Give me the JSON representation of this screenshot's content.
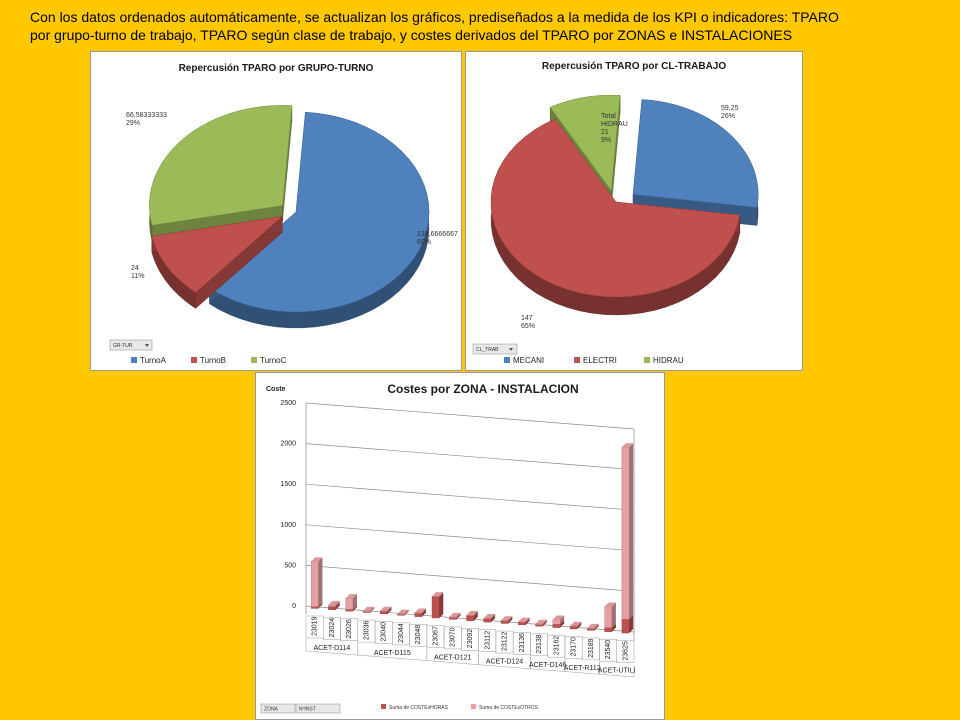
{
  "caption": {
    "line1": "Con los datos ordenados automáticamente, se actualizan los gráficos, prediseñados a la medida de los KPI o indicadores: TPARO",
    "line2": "por grupo-turno de trabajo, TPARO según clase de trabajo, y costes derivados del TPARO por ZONAS e INSTALACIONES"
  },
  "colors": {
    "background": "#FFC800",
    "blue": "#4F81BD",
    "red": "#C0504D",
    "green": "#9BBB59",
    "pink": "#E6A0A3"
  },
  "chart_data": [
    {
      "type": "pie",
      "title": "Repercusión TPARO por GRUPO-TURNO",
      "filter_button": "GR-TUR",
      "slices": [
        {
          "name": "TurnoA",
          "value": 136.6666667,
          "value_label": "136,6666667",
          "pct_label": "60%",
          "color": "#4F81BD"
        },
        {
          "name": "TurnoB",
          "value": 24,
          "value_label": "24",
          "pct_label": "11%",
          "color": "#C0504D"
        },
        {
          "name": "TurnoC",
          "value": 66.58333333,
          "value_label": "66,58333333",
          "pct_label": "29%",
          "color": "#9BBB59"
        }
      ],
      "legend": "bottom"
    },
    {
      "type": "pie",
      "title": "Repercusión TPARO por CL-TRABAJO",
      "filter_button": "CL_TRAB",
      "slices": [
        {
          "name": "MECANI",
          "value": 59.25,
          "value_label": "59,25",
          "pct_label": "26%",
          "color": "#4F81BD"
        },
        {
          "name": "ELECTRI",
          "value": 147,
          "value_label": "147",
          "pct_label": "65%",
          "color": "#C0504D"
        },
        {
          "name": "HIDRAU",
          "value": 21,
          "value_label": "21",
          "pct_label": "9%",
          "extra_label": "Total HIDRAU",
          "color": "#9BBB59"
        }
      ],
      "legend": "bottom"
    },
    {
      "type": "bar",
      "title": "Costes por ZONA - INSTALACION",
      "ylabel": "Coste",
      "ylim": [
        0,
        2500
      ],
      "yticks": [
        "0",
        "500",
        "1000",
        "1500",
        "2000",
        "2500"
      ],
      "categories": [
        "23019",
        "23024",
        "23026",
        "23036",
        "23040",
        "23044",
        "23048",
        "23067",
        "23070",
        "23092",
        "23112",
        "23122",
        "23136",
        "23138",
        "23162",
        "23170",
        "23189",
        "23540",
        "23625"
      ],
      "groups": [
        {
          "label": "ACET-D114",
          "span": 3
        },
        {
          "label": "ACET-D115",
          "span": 4
        },
        {
          "label": "ACET-D121",
          "span": 3
        },
        {
          "label": "ACET-D124",
          "span": 3
        },
        {
          "label": "ACET-D146",
          "span": 2
        },
        {
          "label": "ACET-R112",
          "span": 2
        },
        {
          "label": "ACET-UTILI",
          "span": 2
        }
      ],
      "series": [
        {
          "name": "Suma de COSTExHORAS",
          "color": "#C0504D",
          "values": [
            20,
            40,
            20,
            10,
            30,
            10,
            40,
            260,
            20,
            60,
            40,
            30,
            30,
            20,
            40,
            30,
            20,
            50,
            170
          ]
        },
        {
          "name": "Suma de COSTExOTROS",
          "color": "#E6A0A3",
          "values": [
            560,
            20,
            140,
            10,
            10,
            10,
            10,
            10,
            10,
            10,
            10,
            10,
            10,
            10,
            60,
            10,
            10,
            260,
            2120
          ]
        }
      ],
      "filter_buttons": [
        "ZONA",
        "NºINST"
      ],
      "legend": "bottom"
    }
  ]
}
